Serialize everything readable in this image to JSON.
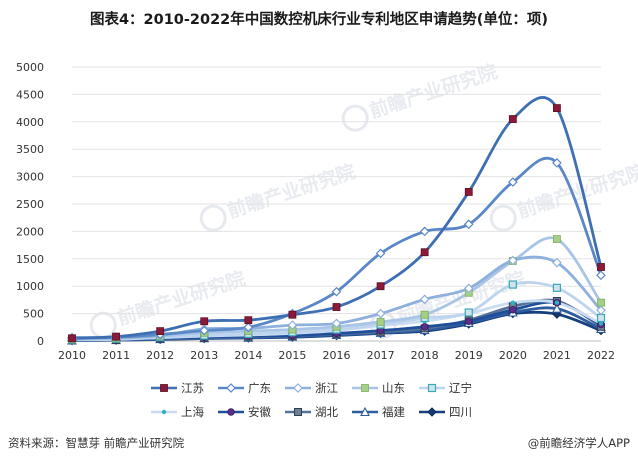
{
  "chart_data": {
    "type": "line",
    "title": "图表4：2010-2022年中国数控机床行业专利地区申请趋势(单位：项)",
    "categories": [
      "2010",
      "2011",
      "2012",
      "2013",
      "2014",
      "2015",
      "2016",
      "2017",
      "2018",
      "2019",
      "2020",
      "2021",
      "2022"
    ],
    "y_ticks": [
      "0",
      "500",
      "1000",
      "1500",
      "2000",
      "2500",
      "3000",
      "3500",
      "4000",
      "4500",
      "5000"
    ],
    "ylim": [
      0,
      5000
    ],
    "legend_position": "bottom",
    "series": [
      {
        "name": "江苏",
        "color": "#3e6fb3",
        "marker": "square-dark",
        "values": [
          50,
          80,
          180,
          360,
          380,
          480,
          620,
          1000,
          1620,
          2720,
          4050,
          4250,
          1350
        ]
      },
      {
        "name": "广东",
        "color": "#5a87c7",
        "marker": "diamond-white",
        "values": [
          60,
          70,
          120,
          190,
          250,
          500,
          900,
          1600,
          2000,
          2130,
          2900,
          3250,
          1200
        ]
      },
      {
        "name": "浙江",
        "color": "#8eb0dc",
        "marker": "diamond-white",
        "values": [
          40,
          60,
          100,
          220,
          230,
          290,
          320,
          500,
          760,
          960,
          1470,
          1430,
          560
        ]
      },
      {
        "name": "山东",
        "color": "#a8c4e6",
        "marker": "square-light",
        "values": [
          30,
          50,
          90,
          150,
          180,
          210,
          260,
          350,
          480,
          880,
          1460,
          1860,
          700
        ]
      },
      {
        "name": "辽宁",
        "color": "#bed3ee",
        "marker": "square-teal",
        "values": [
          25,
          40,
          70,
          100,
          130,
          160,
          210,
          300,
          420,
          520,
          1030,
          970,
          420
        ]
      },
      {
        "name": "上海",
        "color": "#c9dcf2",
        "marker": "dot-teal",
        "values": [
          20,
          30,
          60,
          90,
          110,
          140,
          190,
          280,
          360,
          500,
          700,
          700,
          320
        ]
      },
      {
        "name": "安徽",
        "color": "#1f4e9a",
        "marker": "circle-dark",
        "values": [
          15,
          25,
          50,
          70,
          90,
          100,
          140,
          190,
          260,
          360,
          570,
          700,
          300
        ]
      },
      {
        "name": "湖北",
        "color": "#56729a",
        "marker": "square-grey",
        "values": [
          15,
          20,
          45,
          60,
          80,
          95,
          130,
          170,
          230,
          380,
          630,
          730,
          260
        ]
      },
      {
        "name": "福建",
        "color": "#2d5c9f",
        "marker": "triangle-white",
        "values": [
          10,
          18,
          35,
          50,
          60,
          80,
          110,
          150,
          200,
          330,
          520,
          590,
          220
        ]
      },
      {
        "name": "四川",
        "color": "#173f7e",
        "marker": "diamond-dark",
        "values": [
          8,
          15,
          30,
          45,
          55,
          70,
          100,
          140,
          180,
          310,
          500,
          490,
          190
        ]
      }
    ]
  },
  "watermark": "前瞻产业研究院",
  "footer": {
    "source": "资料来源：智慧芽 前瞻产业研究院",
    "brand": "@前瞻经济学人APP"
  }
}
